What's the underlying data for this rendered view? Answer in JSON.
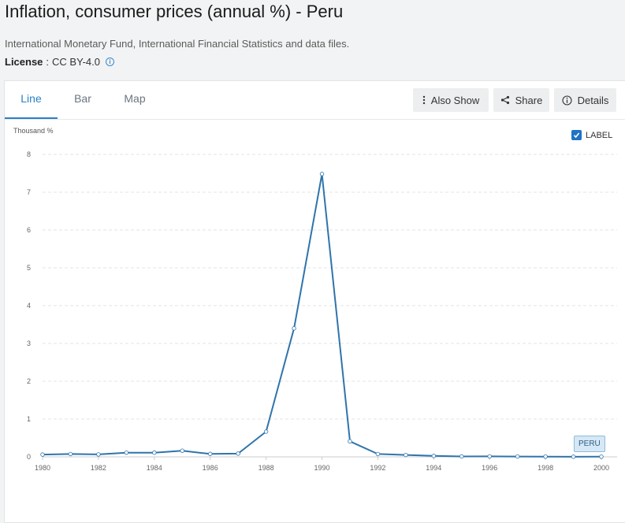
{
  "page": {
    "title": "Inflation, consumer prices (annual %) - Peru",
    "source": "International Monetary Fund, International Financial Statistics and data files.",
    "license_label": "License",
    "license_value": "CC BY-4.0"
  },
  "tabs": [
    {
      "label": "Line",
      "active": true
    },
    {
      "label": "Bar",
      "active": false
    },
    {
      "label": "Map",
      "active": false
    }
  ],
  "toolbar": {
    "also_show_label": "Also Show",
    "share_label": "Share",
    "details_label": "Details"
  },
  "chart": {
    "unit_label": "Thousand %",
    "label_toggle": "LABEL",
    "label_checked": true,
    "series_tag": "PERU"
  },
  "colors": {
    "line": "#2f74ab",
    "accent": "#2a7fc8",
    "grid": "#e2e4e6"
  },
  "chart_data": {
    "type": "line",
    "title": "Inflation, consumer prices (annual %) - Peru",
    "xlabel": "",
    "ylabel": "Thousand %",
    "xlim": [
      1980,
      2000
    ],
    "ylim": [
      0,
      8
    ],
    "x_ticks": [
      "1980",
      "1982",
      "1984",
      "1986",
      "1988",
      "1990",
      "1992",
      "1994",
      "1996",
      "1998",
      "2000"
    ],
    "y_ticks": [
      "0",
      "1",
      "2",
      "3",
      "4",
      "5",
      "6",
      "7",
      "8"
    ],
    "grid": true,
    "x": [
      1980,
      1981,
      1982,
      1983,
      1984,
      1985,
      1986,
      1987,
      1988,
      1989,
      1990,
      1991,
      1992,
      1993,
      1994,
      1995,
      1996,
      1997,
      1998,
      1999,
      2000
    ],
    "series": [
      {
        "name": "PERU",
        "values": [
          0.06,
          0.075,
          0.064,
          0.111,
          0.11,
          0.163,
          0.078,
          0.086,
          0.667,
          3.399,
          7.482,
          0.41,
          0.074,
          0.049,
          0.024,
          0.011,
          0.012,
          0.009,
          0.007,
          0.003,
          0.004
        ]
      }
    ]
  }
}
